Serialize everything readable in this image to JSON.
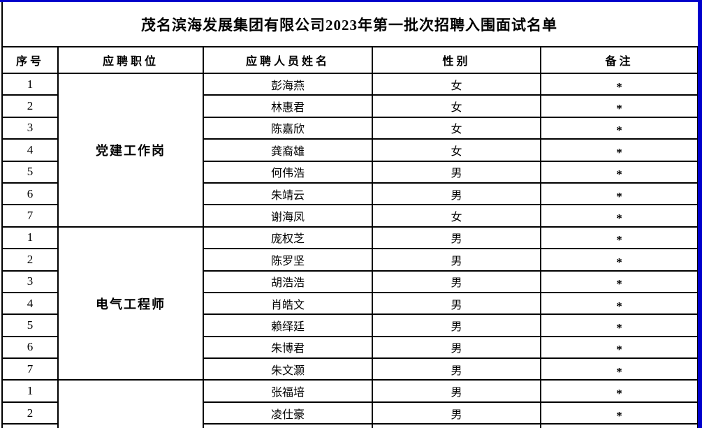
{
  "title": "茂名滨海发展集团有限公司2023年第一批次招聘入围面试名单",
  "colors": {
    "viewport_border_blue": "#0000CC",
    "grid_black": "#000000",
    "background": "#FFFFFF"
  },
  "table": {
    "headers": {
      "seq": "序号",
      "position": "应聘职位",
      "name": "应聘人员姓名",
      "gender": "性别",
      "remark": "备注"
    },
    "groups": [
      {
        "position": "党建工作岗",
        "rows": [
          {
            "seq": "1",
            "name": "彭海燕",
            "gender": "女",
            "remark": "*"
          },
          {
            "seq": "2",
            "name": "林惠君",
            "gender": "女",
            "remark": "*"
          },
          {
            "seq": "3",
            "name": "陈嘉欣",
            "gender": "女",
            "remark": "*"
          },
          {
            "seq": "4",
            "name": "龚裔雄",
            "gender": "女",
            "remark": "*"
          },
          {
            "seq": "5",
            "name": "何伟浩",
            "gender": "男",
            "remark": "*"
          },
          {
            "seq": "6",
            "name": "朱靖云",
            "gender": "男",
            "remark": "*"
          },
          {
            "seq": "7",
            "name": "谢海凤",
            "gender": "女",
            "remark": "*"
          }
        ]
      },
      {
        "position": "电气工程师",
        "rows": [
          {
            "seq": "1",
            "name": "庞权芝",
            "gender": "男",
            "remark": "*"
          },
          {
            "seq": "2",
            "name": "陈罗坚",
            "gender": "男",
            "remark": "*"
          },
          {
            "seq": "3",
            "name": "胡浩浩",
            "gender": "男",
            "remark": "*"
          },
          {
            "seq": "4",
            "name": "肖皓文",
            "gender": "男",
            "remark": "*"
          },
          {
            "seq": "5",
            "name": "赖绎廷",
            "gender": "男",
            "remark": "*"
          },
          {
            "seq": "6",
            "name": "朱博君",
            "gender": "男",
            "remark": "*"
          },
          {
            "seq": "7",
            "name": "朱文灏",
            "gender": "男",
            "remark": "*"
          }
        ]
      },
      {
        "position": "",
        "rows": [
          {
            "seq": "1",
            "name": "张福培",
            "gender": "男",
            "remark": "*"
          },
          {
            "seq": "2",
            "name": "凌仕豪",
            "gender": "男",
            "remark": "*"
          },
          {
            "seq": "",
            "name": "",
            "gender": "",
            "remark": ""
          }
        ]
      }
    ]
  }
}
